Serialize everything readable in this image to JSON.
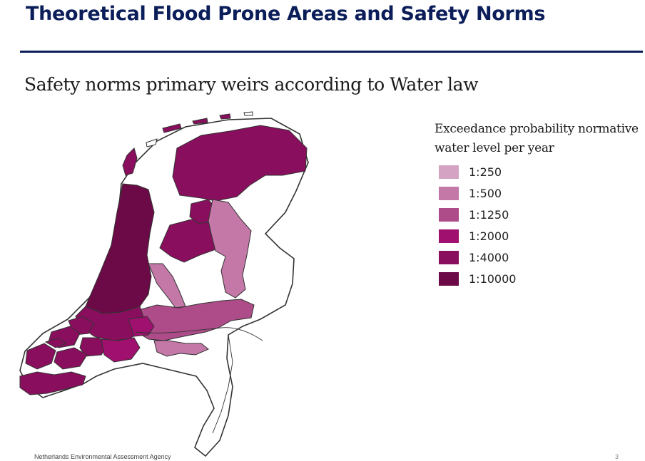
{
  "slide": {
    "title": "Theoretical Flood Prone Areas and Safety Norms",
    "subtitle": "Safety norms primary weirs according to Water law",
    "footer": "Netherlands Environmental Assessment Agency",
    "page_number": "3"
  },
  "legend": {
    "title_line1": "Exceedance probability normative",
    "title_line2": "water level per year",
    "items": [
      {
        "label": "1:250",
        "color": "#d4a3c3"
      },
      {
        "label": "1:500",
        "color": "#c378a8"
      },
      {
        "label": "1:1250",
        "color": "#ad4c88"
      },
      {
        "label": "1:2000",
        "color": "#a0106e"
      },
      {
        "label": "1:4000",
        "color": "#8a0e5e"
      },
      {
        "label": "1:10000",
        "color": "#6b0a46"
      }
    ]
  },
  "map": {
    "outline_color": "#333333",
    "land_color": "#ffffff"
  }
}
